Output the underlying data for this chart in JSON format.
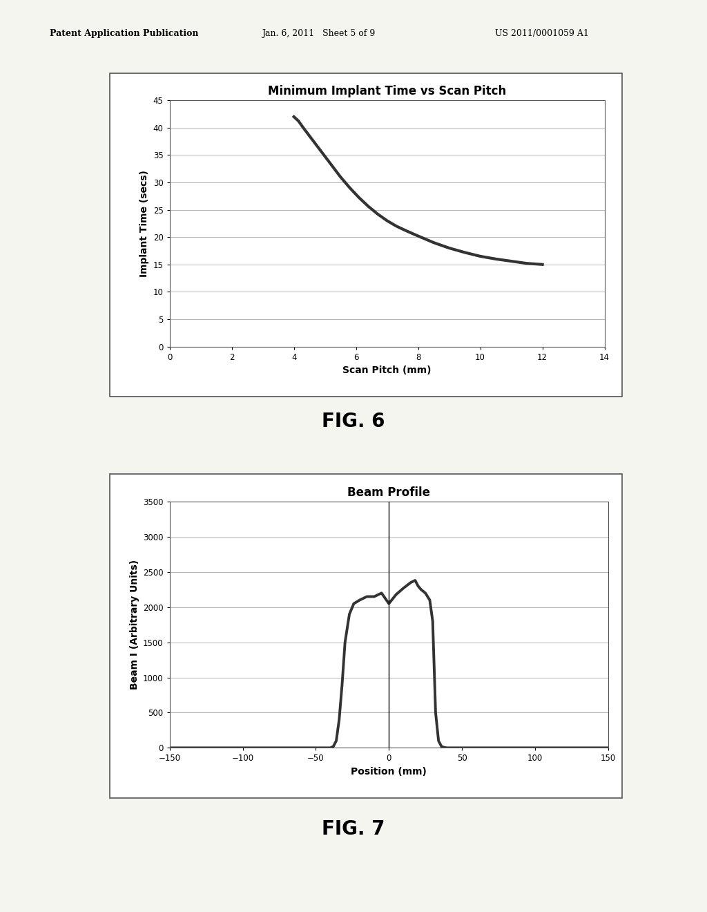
{
  "fig6": {
    "title": "Minimum Implant Time vs Scan Pitch",
    "xlabel": "Scan Pitch (mm)",
    "ylabel": "Implant Time (secs)",
    "xlim": [
      0,
      14
    ],
    "ylim": [
      0,
      45
    ],
    "xticks": [
      0,
      2,
      4,
      6,
      8,
      10,
      12,
      14
    ],
    "yticks": [
      0,
      5,
      10,
      15,
      20,
      25,
      30,
      35,
      40,
      45
    ],
    "curve_color": "#333333",
    "curve_x": [
      4.0,
      4.15,
      4.3,
      4.5,
      4.7,
      4.9,
      5.1,
      5.3,
      5.5,
      5.8,
      6.1,
      6.4,
      6.7,
      7.0,
      7.3,
      7.6,
      8.0,
      8.5,
      9.0,
      9.5,
      10.0,
      10.5,
      11.0,
      11.5,
      12.0
    ],
    "curve_y": [
      42.0,
      41.2,
      40.0,
      38.5,
      37.0,
      35.5,
      34.0,
      32.5,
      31.0,
      29.0,
      27.2,
      25.6,
      24.2,
      23.0,
      22.0,
      21.2,
      20.2,
      19.0,
      18.0,
      17.2,
      16.5,
      16.0,
      15.6,
      15.2,
      15.0
    ]
  },
  "fig7": {
    "title": "Beam Profile",
    "xlabel": "Position (mm)",
    "ylabel": "Beam I (Arbitrary Units)",
    "xlim": [
      -150,
      150
    ],
    "ylim": [
      0,
      3500
    ],
    "xticks": [
      -150,
      -100,
      -50,
      0,
      50,
      100,
      150
    ],
    "yticks": [
      0,
      500,
      1000,
      1500,
      2000,
      2500,
      3000,
      3500
    ],
    "curve_color": "#333333",
    "vline_x": 0,
    "curve_x": [
      -150,
      -40,
      -38,
      -36,
      -34,
      -32,
      -30,
      -27,
      -24,
      -20,
      -15,
      -10,
      -5,
      0,
      5,
      10,
      15,
      18,
      20,
      22,
      25,
      28,
      30,
      32,
      34,
      36,
      38,
      40,
      150
    ],
    "curve_y": [
      0,
      0,
      20,
      100,
      400,
      900,
      1500,
      1900,
      2050,
      2100,
      2150,
      2150,
      2200,
      2050,
      2180,
      2270,
      2350,
      2380,
      2300,
      2250,
      2200,
      2100,
      1800,
      500,
      100,
      20,
      5,
      0,
      0
    ]
  },
  "header_left": "Patent Application Publication",
  "header_mid": "Jan. 6, 2011   Sheet 5 of 9",
  "header_right": "US 2011/0001059 A1",
  "fig6_label": "FIG. 6",
  "fig7_label": "FIG. 7",
  "background_color": "#f5f5f0",
  "box_color": "#ffffff",
  "box_edge_color": "#555555"
}
